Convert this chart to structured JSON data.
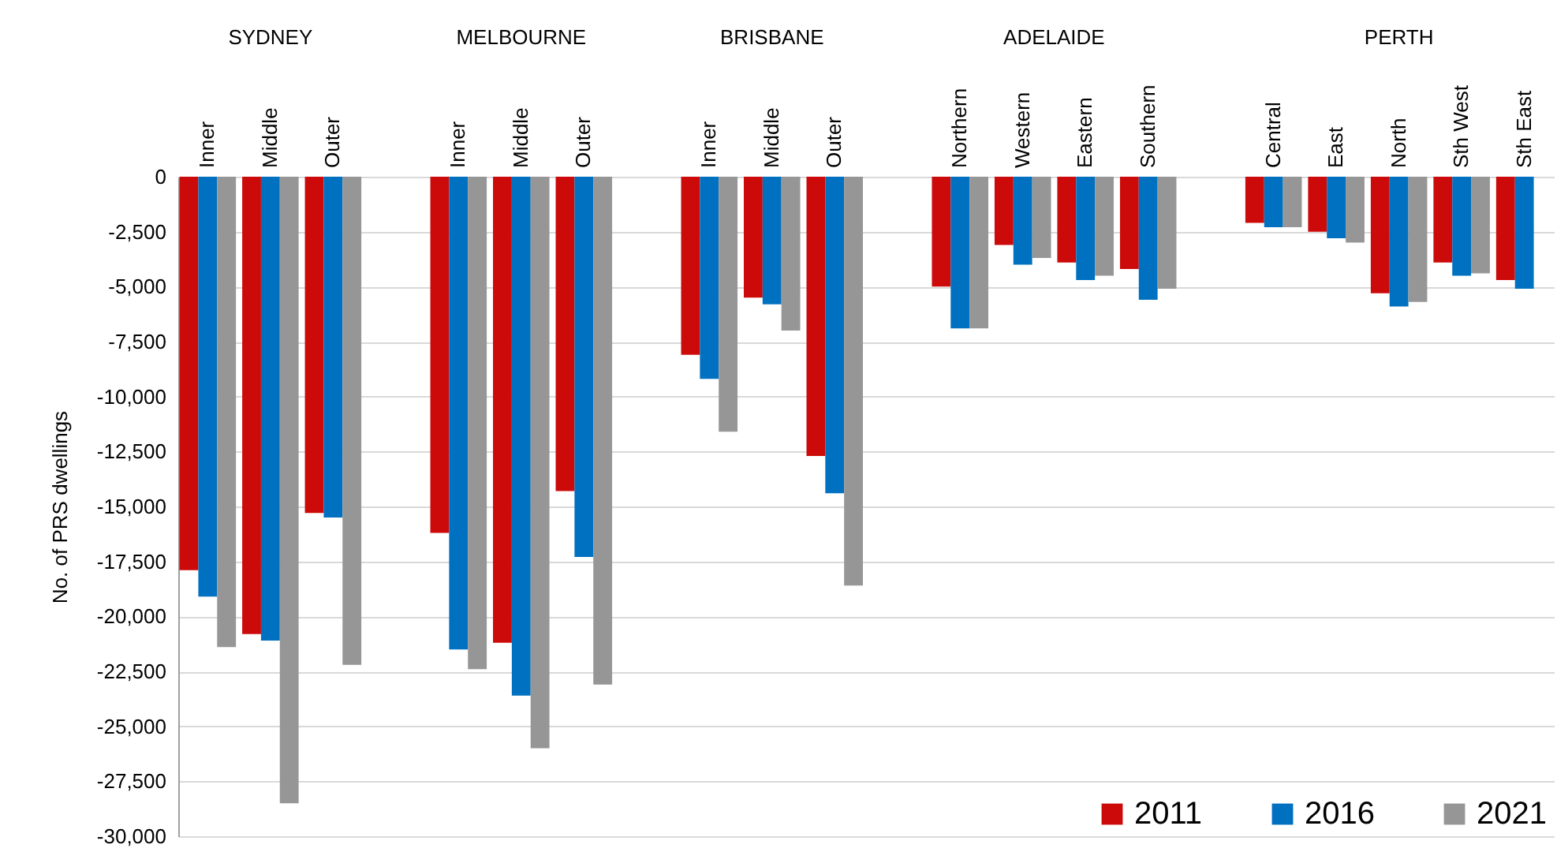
{
  "chart_data": {
    "type": "bar",
    "ylabel": "No. of  PRS dwellings",
    "categories": [
      "Inner",
      "Middle",
      "Outer",
      null,
      "Inner",
      "Middle",
      "Outer",
      null,
      "Inner",
      "Middle",
      "Outer",
      null,
      "Northern",
      "Western",
      "Eastern",
      "Southern",
      null,
      "Central",
      "East",
      "North",
      "Sth West",
      "Sth East"
    ],
    "annotations": [
      "SYDNEY",
      "MELBOURNE",
      "BRISBANE",
      "ADELAIDE",
      "PERTH"
    ],
    "series": [
      {
        "name": "2011",
        "color": "#cc0a0a",
        "values": [
          -17900,
          -20800,
          -15300,
          null,
          -16200,
          -21200,
          -14300,
          null,
          -8100,
          -5500,
          -12700,
          null,
          -5000,
          -3100,
          -3900,
          -4200,
          null,
          -2100,
          -2500,
          -5300,
          -3900,
          -4700
        ]
      },
      {
        "name": "2016",
        "color": "#0070c0",
        "values": [
          -19100,
          -21100,
          -15500,
          null,
          -21500,
          -23600,
          -17300,
          null,
          -9200,
          -5800,
          -14400,
          null,
          -6900,
          -4000,
          -4700,
          -5600,
          null,
          -2300,
          -2800,
          -5900,
          -4500,
          -5100
        ]
      },
      {
        "name": "2021",
        "color": "#969696",
        "values": [
          -21400,
          -28500,
          -22200,
          null,
          -22400,
          -26000,
          -23100,
          null,
          -11600,
          -7000,
          -18600,
          null,
          -6900,
          -3700,
          -4500,
          -5100,
          null,
          -2300,
          -3000,
          -5700,
          -4400,
          null
        ]
      }
    ],
    "ylim": [
      -30000,
      0
    ],
    "yticks": [
      0,
      {
        "value": -2500,
        "label": "-2,500"
      },
      {
        "value": -5000,
        "label": "-5,000"
      },
      {
        "value": -7500,
        "label": "-7,500"
      },
      {
        "value": -10000,
        "label": "-10,000"
      },
      {
        "value": -12500,
        "label": "-12,500"
      },
      {
        "value": -15000,
        "label": "-15,000"
      },
      {
        "value": -17500,
        "label": "-17,500"
      },
      {
        "value": -20000,
        "label": "-20,000"
      },
      {
        "value": -22500,
        "label": "-22,500"
      },
      {
        "value": -25000,
        "label": "-25,000"
      },
      {
        "value": -27500,
        "label": "-27,500"
      },
      {
        "value": -30000,
        "label": "-30,000"
      }
    ],
    "grid": "y",
    "legend": "bottom right"
  }
}
